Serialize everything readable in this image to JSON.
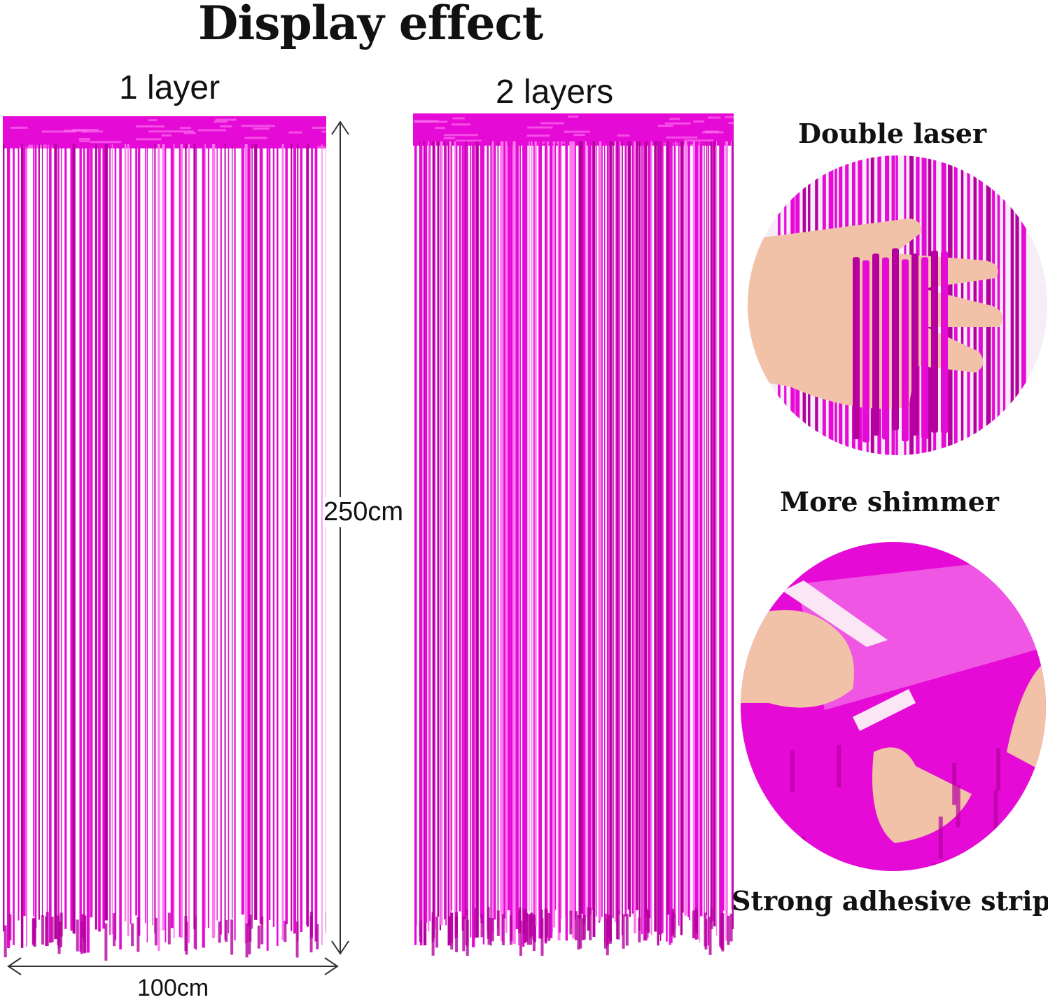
{
  "title": "Display effect",
  "panels": [
    {
      "label": "1 layer",
      "layers": 1
    },
    {
      "label": "2 layers",
      "layers": 2
    }
  ],
  "dimensions": {
    "height": "250cm",
    "width": "100cm"
  },
  "features": [
    {
      "label": "Double laser"
    },
    {
      "label": "More shimmer"
    },
    {
      "label": "Strong adhesive strip"
    }
  ],
  "colors": {
    "foil": "#e60ad6",
    "foil_dark": "#b5009f",
    "foil_light": "#ff7af0",
    "skin": "#f1c2a8",
    "text": "#111111"
  },
  "icons": {
    "height_arrow": "double-arrow-vertical",
    "width_arrow": "double-arrow-horizontal"
  }
}
